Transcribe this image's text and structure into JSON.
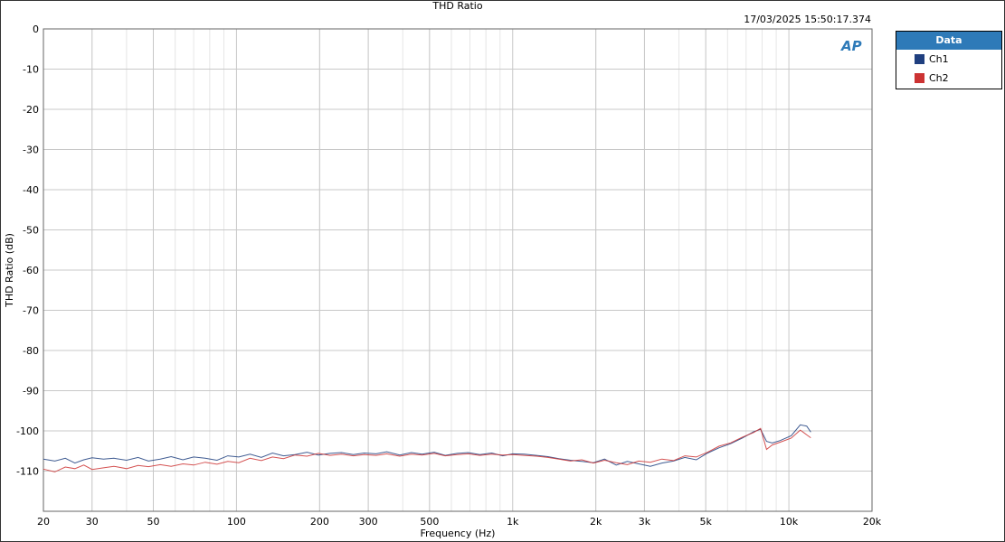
{
  "chart_data": {
    "type": "line",
    "title": "THD Ratio",
    "timestamp": "17/03/2025 15:50:17.374",
    "xlabel": "Frequency (Hz)",
    "ylabel": "THD Ratio (dB)",
    "xscale": "log",
    "xlim": [
      20,
      20000
    ],
    "ylim": [
      -120,
      0
    ],
    "grid": true,
    "legend_title": "Data",
    "legend_placement": "right",
    "xticks": [
      {
        "v": 20,
        "l": "20"
      },
      {
        "v": 30,
        "l": "30"
      },
      {
        "v": 50,
        "l": "50"
      },
      {
        "v": 100,
        "l": "100"
      },
      {
        "v": 200,
        "l": "200"
      },
      {
        "v": 300,
        "l": "300"
      },
      {
        "v": 500,
        "l": "500"
      },
      {
        "v": 1000,
        "l": "1k"
      },
      {
        "v": 2000,
        "l": "2k"
      },
      {
        "v": 3000,
        "l": "3k"
      },
      {
        "v": 5000,
        "l": "5k"
      },
      {
        "v": 10000,
        "l": "10k"
      },
      {
        "v": 20000,
        "l": "20k"
      }
    ],
    "yticks": [
      0,
      -10,
      -20,
      -30,
      -40,
      -50,
      -60,
      -70,
      -80,
      -90,
      -100,
      -110
    ],
    "x": [
      20,
      22,
      24,
      26,
      28,
      30,
      33,
      36,
      40,
      44,
      48,
      53,
      58,
      64,
      70,
      77,
      85,
      93,
      102,
      112,
      123,
      135,
      148,
      163,
      180,
      198,
      218,
      240,
      265,
      290,
      320,
      350,
      390,
      430,
      470,
      520,
      570,
      630,
      690,
      760,
      840,
      920,
      1000,
      1100,
      1220,
      1340,
      1470,
      1620,
      1780,
      1960,
      2150,
      2370,
      2600,
      2860,
      3150,
      3470,
      3820,
      4200,
      4620,
      5080,
      5590,
      6150,
      6770,
      7450,
      7900,
      8300,
      8700,
      9300,
      10200,
      11000,
      11600,
      12000
    ],
    "series": [
      {
        "name": "Ch1",
        "color": "#1f3f7f",
        "values": [
          -107,
          -107.5,
          -106.8,
          -108,
          -107.2,
          -106.7,
          -107,
          -106.8,
          -107.3,
          -106.6,
          -107.5,
          -107,
          -106.4,
          -107.2,
          -106.5,
          -106.8,
          -107.3,
          -106.2,
          -106.5,
          -105.8,
          -106.6,
          -105.5,
          -106.2,
          -105.9,
          -105.3,
          -106,
          -105.6,
          -105.4,
          -105.9,
          -105.5,
          -105.7,
          -105.2,
          -106,
          -105.4,
          -105.8,
          -105.3,
          -106.1,
          -105.6,
          -105.4,
          -105.9,
          -105.5,
          -106.2,
          -105.7,
          -105.8,
          -106.1,
          -106.4,
          -106.9,
          -107.3,
          -107.6,
          -107.9,
          -107,
          -108.5,
          -107.6,
          -108.2,
          -108.8,
          -108,
          -107.5,
          -106.6,
          -107.2,
          -105.5,
          -104.2,
          -103.2,
          -101.8,
          -100.2,
          -99.6,
          -102.6,
          -103,
          -102.4,
          -101.2,
          -98.5,
          -98.8,
          -100.3
        ]
      },
      {
        "name": "Ch2",
        "color": "#cc3333",
        "values": [
          -109.5,
          -110.2,
          -109,
          -109.4,
          -108.5,
          -109.6,
          -109.2,
          -108.8,
          -109.4,
          -108.6,
          -108.9,
          -108.4,
          -108.8,
          -108.2,
          -108.5,
          -107.8,
          -108.3,
          -107.6,
          -107.9,
          -106.8,
          -107.4,
          -106.5,
          -106.9,
          -106,
          -106.3,
          -105.6,
          -106.1,
          -105.8,
          -106.2,
          -105.9,
          -106.1,
          -105.7,
          -106.3,
          -105.8,
          -106,
          -105.6,
          -106.2,
          -105.9,
          -105.7,
          -106.1,
          -105.8,
          -106,
          -105.9,
          -106.1,
          -106.3,
          -106.6,
          -107,
          -107.5,
          -107.2,
          -108,
          -107.3,
          -107.9,
          -108.4,
          -107.5,
          -107.8,
          -107,
          -107.4,
          -106.2,
          -106.5,
          -105.3,
          -103.8,
          -103,
          -101.6,
          -100.4,
          -99.4,
          -104.6,
          -103.5,
          -102.8,
          -101.8,
          -99.8,
          -101,
          -101.7
        ]
      }
    ]
  }
}
